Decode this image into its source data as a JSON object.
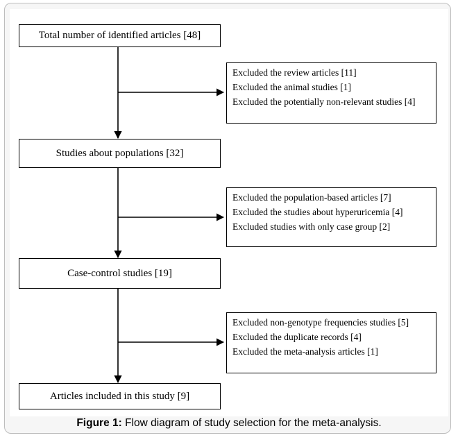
{
  "nodes": {
    "identified": "Total number of identified articles [48]",
    "populations": "Studies about populations [32]",
    "case_control": "Case-control studies [19]",
    "included": "Articles included in this study [9]"
  },
  "exclusions": {
    "stage1": [
      "Excluded the review articles [11]",
      "Excluded the animal studies [1]",
      "Excluded the potentially non-relevant studies [4]"
    ],
    "stage2": [
      "Excluded the population-based articles [7]",
      "Excluded the studies about hyperuricemia [4]",
      "Excluded studies with only case group [2]"
    ],
    "stage3": [
      "Excluded non-genotype frequencies studies [5]",
      "Excluded the duplicate records [4]",
      "Excluded the meta-analysis articles [1]"
    ]
  },
  "caption": {
    "label": "Figure 1:",
    "text": " Flow diagram of study selection for the meta-analysis."
  }
}
